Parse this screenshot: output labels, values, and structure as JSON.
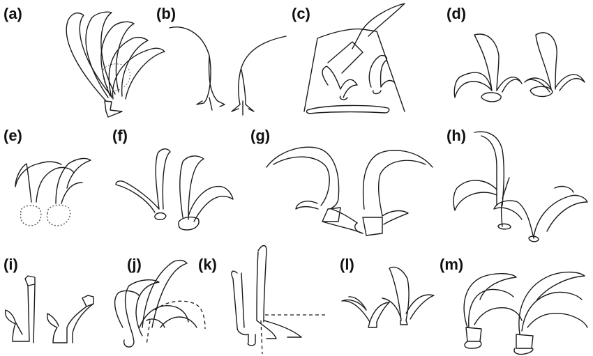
{
  "figure": {
    "panels": [
      {
        "id": "a",
        "label": "(a)"
      },
      {
        "id": "b",
        "label": "(b)"
      },
      {
        "id": "c",
        "label": "(c)"
      },
      {
        "id": "d",
        "label": "(d)"
      },
      {
        "id": "e",
        "label": "(e)"
      },
      {
        "id": "f",
        "label": "(f)"
      },
      {
        "id": "g",
        "label": "(g)"
      },
      {
        "id": "h",
        "label": "(h)"
      },
      {
        "id": "i",
        "label": "(i)"
      },
      {
        "id": "j",
        "label": "(j)"
      },
      {
        "id": "k",
        "label": "(k)"
      },
      {
        "id": "l",
        "label": "(l)"
      },
      {
        "id": "m",
        "label": "(m)"
      }
    ],
    "colors": {
      "background": "#ffffff",
      "line": "#1a1a1a",
      "text": "#111111"
    }
  }
}
